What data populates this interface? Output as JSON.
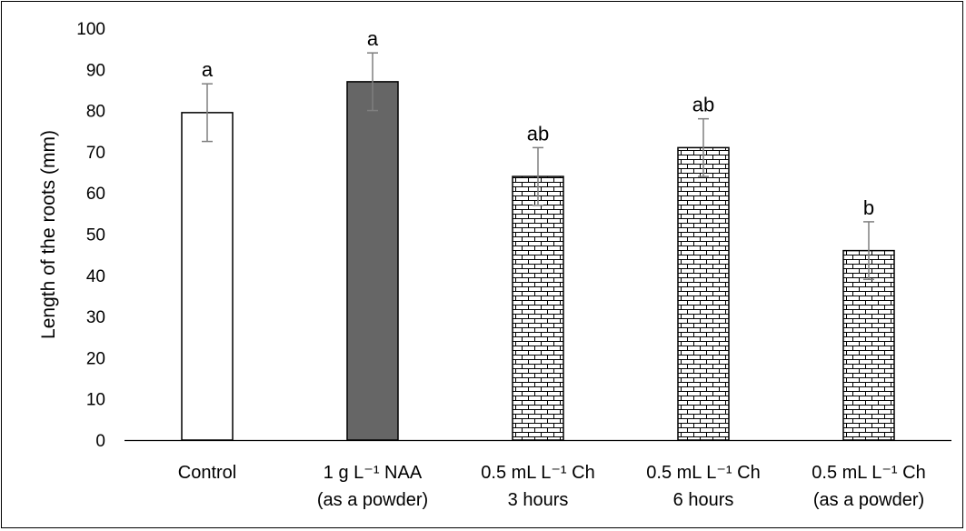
{
  "chart_data": {
    "type": "bar",
    "title": "",
    "xlabel": "",
    "ylabel": "Length of the roots (mm)",
    "ylim": [
      0,
      100
    ],
    "yticks": [
      0,
      10,
      20,
      30,
      40,
      50,
      60,
      70,
      80,
      90,
      100
    ],
    "grid": false,
    "legend": "none",
    "categories": [
      {
        "line1": "Control",
        "line2": ""
      },
      {
        "line1": "1 g L⁻¹ NAA",
        "line2": "(as a powder)"
      },
      {
        "line1": "0.5 mL L⁻¹ Ch",
        "line2": "3 hours"
      },
      {
        "line1": "0.5 mL L⁻¹ Ch",
        "line2": "6 hours"
      },
      {
        "line1": "0.5 mL L⁻¹ Ch",
        "line2": "(as a powder)"
      }
    ],
    "values": [
      79.5,
      87,
      64,
      71,
      46
    ],
    "errors": [
      7,
      7,
      7,
      7,
      7
    ],
    "significance_letters": [
      "a",
      "a",
      "ab",
      "ab",
      "b"
    ],
    "bar_fills": [
      "white",
      "solid-gray",
      "brick-pattern",
      "brick-pattern",
      "brick-pattern"
    ],
    "colors": {
      "solid_bar": "#666666",
      "error_bar": "#7f7f7f",
      "axis": "#000000"
    }
  }
}
